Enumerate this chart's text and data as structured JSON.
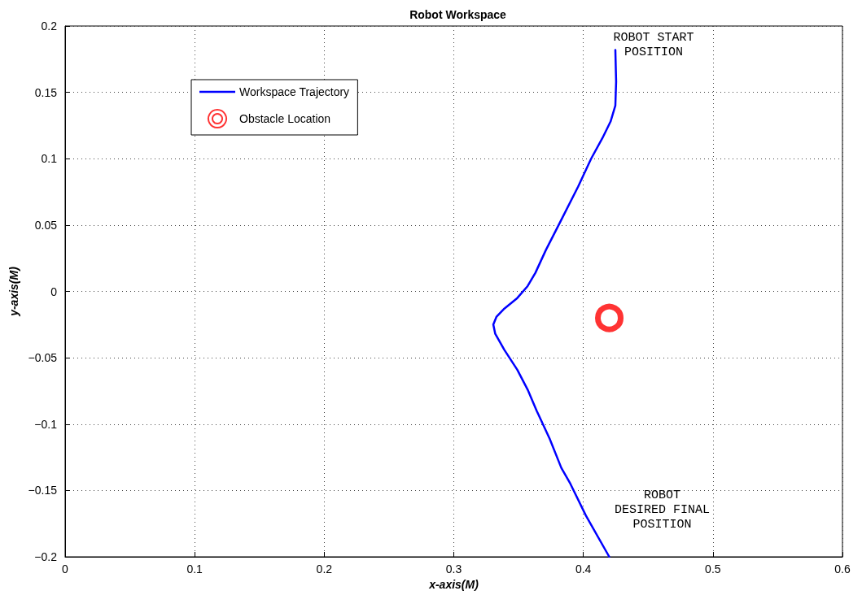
{
  "chart_data": {
    "type": "line",
    "title": "Robot Workspace",
    "xlabel": "x-axis(M)",
    "ylabel": "y-axis(M)",
    "xlim": [
      0,
      0.6
    ],
    "xticks": [
      0,
      0.1,
      0.2,
      0.3,
      0.4,
      0.5,
      0.6
    ],
    "ylim": [
      -0.2,
      0.2
    ],
    "yticks": [
      -0.2,
      -0.15,
      -0.1,
      -0.05,
      0,
      0.05,
      0.1,
      0.15,
      0.2
    ],
    "grid": true,
    "legend": "top left",
    "series": [
      {
        "name": "Workspace Trajectory",
        "color": "#0000ff",
        "marker": "none",
        "line_style": "solid",
        "x": [
          0.4247,
          0.4253,
          0.4247,
          0.421,
          0.4147,
          0.406,
          0.396,
          0.383,
          0.371,
          0.363,
          0.357,
          0.349,
          0.339,
          0.333,
          0.3305,
          0.332,
          0.339,
          0.349,
          0.357,
          0.364,
          0.374,
          0.383,
          0.39,
          0.402,
          0.42
        ],
        "values": [
          0.182,
          0.158,
          0.14,
          0.128,
          0.1155,
          0.1,
          0.079,
          0.054,
          0.031,
          0.014,
          0.004,
          -0.005,
          -0.013,
          -0.019,
          -0.025,
          -0.032,
          -0.044,
          -0.059,
          -0.074,
          -0.09,
          -0.111,
          -0.133,
          -0.145,
          -0.169,
          -0.2
        ]
      },
      {
        "name": "Obstacle Location",
        "type": "scatter",
        "color": "#ff0000",
        "marker": "circle",
        "x": [
          0.42
        ],
        "values": [
          -0.02
        ]
      }
    ],
    "annotations": [
      "ROBOT START\nPOSITION",
      "ROBOT\nDESIRED FINAL\nPOSITION"
    ]
  }
}
